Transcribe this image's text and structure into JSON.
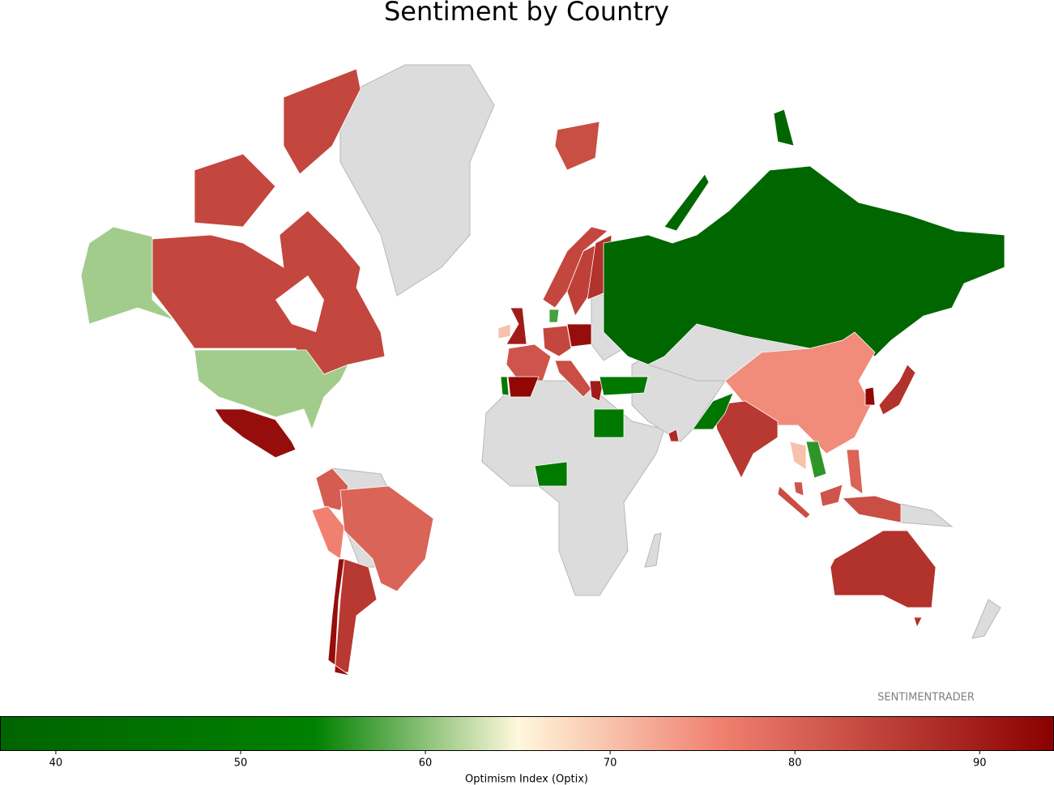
{
  "chart_data": {
    "type": "choropleth",
    "title": "Sentiment by Country",
    "watermark": "SENTIMENTRADER",
    "colorbar_label": "Optimism Index (Optix)",
    "vlim": [
      37,
      94
    ],
    "ticks": [
      40,
      50,
      60,
      70,
      80,
      90
    ],
    "colorscale": [
      [
        37,
        "#006400"
      ],
      [
        54,
        "#008000"
      ],
      [
        65,
        "#fff8dc"
      ],
      [
        76,
        "#f08070"
      ],
      [
        94,
        "#8b0000"
      ]
    ],
    "values": [
      84,
      61,
      92,
      81,
      76,
      80,
      86,
      92,
      83,
      84,
      85,
      87,
      90,
      70,
      82,
      93,
      51,
      84,
      92,
      83,
      90,
      57,
      49,
      38,
      75,
      86,
      48,
      50,
      51,
      87,
      93,
      56,
      70,
      82,
      80,
      83,
      87,
      88
    ]
  }
}
